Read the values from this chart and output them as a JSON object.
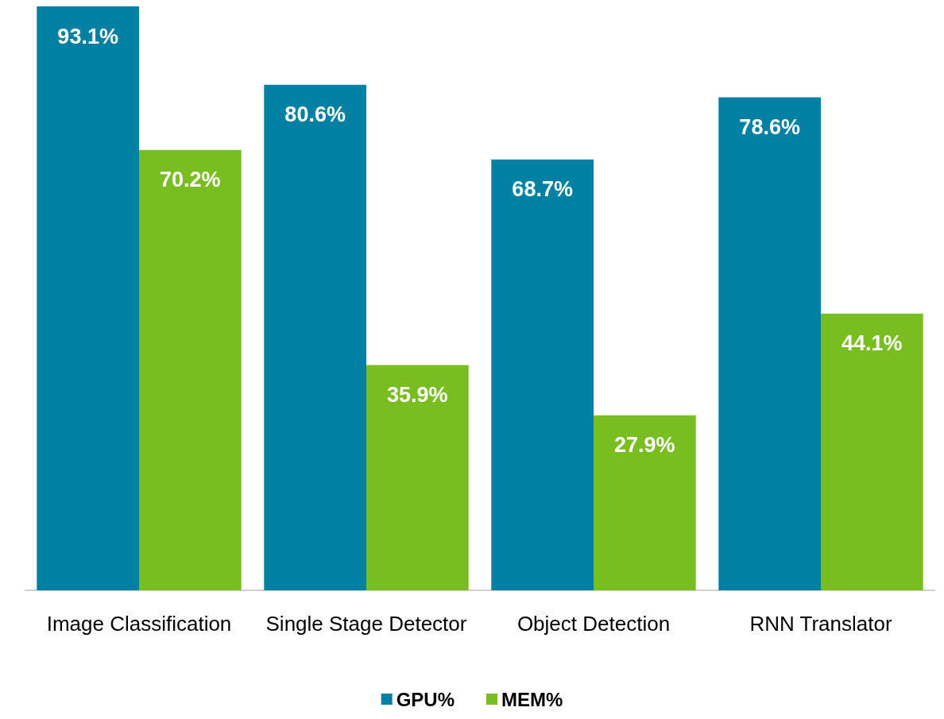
{
  "chart_data": {
    "type": "bar",
    "categories": [
      "Image Classification",
      "Single Stage Detector",
      "Object Detection",
      "RNN Translator"
    ],
    "series": [
      {
        "name": "GPU%",
        "color": "#0080a3",
        "values": [
          93.1,
          80.6,
          68.7,
          78.6
        ],
        "value_labels": [
          "93.1%",
          "80.6%",
          "68.7%",
          "78.6%"
        ]
      },
      {
        "name": "MEM%",
        "color": "#78be20",
        "values": [
          70.2,
          35.9,
          27.9,
          44.1
        ],
        "value_labels": [
          "70.2%",
          "35.9%",
          "27.9%",
          "44.1%"
        ]
      }
    ],
    "legend": "bottom",
    "grid": false
  }
}
